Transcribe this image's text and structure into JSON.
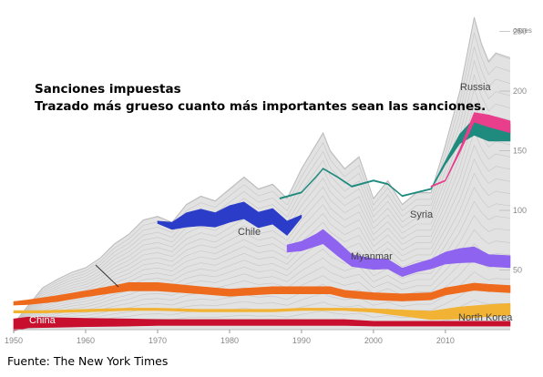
{
  "title": "Sanciones impuestas",
  "subtitle": "Trazado más grueso cuanto más importantes sean las sanciones.",
  "source": "Fuente: The New York Times",
  "chart_data": {
    "type": "area",
    "xlim": [
      1950,
      2019
    ],
    "ylim": [
      0,
      260
    ],
    "y_unit": "cases",
    "x_ticks": [
      1950,
      1960,
      1970,
      1980,
      1990,
      2000,
      2010
    ],
    "y_ticks": [
      50,
      100,
      150,
      200,
      250
    ],
    "grid": false,
    "total": {
      "x": [
        1950,
        1952,
        1954,
        1956,
        1958,
        1960,
        1962,
        1964,
        1966,
        1968,
        1970,
        1972,
        1974,
        1976,
        1978,
        1980,
        1982,
        1984,
        1986,
        1988,
        1990,
        1992,
        1993,
        1994,
        1996,
        1998,
        2000,
        2002,
        2004,
        2006,
        2008,
        2010,
        2012,
        2014,
        2015,
        2016,
        2017,
        2018,
        2019
      ],
      "values": [
        5,
        20,
        35,
        42,
        48,
        52,
        60,
        72,
        80,
        92,
        95,
        90,
        105,
        112,
        108,
        118,
        128,
        118,
        122,
        110,
        135,
        155,
        165,
        150,
        135,
        145,
        110,
        125,
        105,
        115,
        115,
        155,
        200,
        262,
        240,
        225,
        232,
        230,
        228
      ]
    },
    "highlighted_series": [
      {
        "name": "China",
        "color": "#c8102e",
        "x": [
          1950,
          1952,
          1956,
          1960,
          1966,
          1970,
          1976,
          1980,
          1986,
          1990,
          1996,
          2000,
          2006,
          2010,
          2016,
          2019
        ],
        "y": [
          4,
          6,
          6,
          6,
          6,
          6,
          6,
          6,
          6,
          6,
          6,
          5,
          5,
          5,
          5,
          5
        ],
        "thickness": [
          10,
          9,
          8,
          7,
          6,
          5,
          5,
          5,
          5,
          5,
          5,
          4,
          4,
          4,
          4,
          4
        ]
      },
      {
        "name": "North Korea",
        "color": "#f2b233",
        "x": [
          1950,
          1954,
          1960,
          1966,
          1970,
          1976,
          1980,
          1986,
          1990,
          1996,
          2000,
          2004,
          2008,
          2012,
          2016,
          2019
        ],
        "y": [
          15,
          15,
          16,
          17,
          17,
          16,
          16,
          16,
          17,
          17,
          16,
          14,
          12,
          14,
          16,
          17
        ],
        "thickness": [
          2,
          2,
          2,
          2,
          2,
          2,
          2,
          2,
          2,
          2,
          3,
          5,
          7,
          10,
          10,
          10
        ]
      },
      {
        "name": "",
        "color": "#ee6b1e",
        "x": [
          1950,
          1952,
          1956,
          1960,
          1964,
          1966,
          1970,
          1976,
          1980,
          1986,
          1990,
          1994,
          1996,
          2000,
          2004,
          2008,
          2010,
          2014,
          2016,
          2019
        ],
        "y": [
          22,
          23,
          26,
          30,
          34,
          36,
          36,
          33,
          31,
          33,
          33,
          33,
          30,
          28,
          27,
          28,
          32,
          36,
          35,
          34
        ],
        "thickness": [
          3,
          4,
          5,
          5,
          6,
          7,
          7,
          6,
          6,
          6,
          6,
          6,
          6,
          6,
          6,
          6,
          6,
          6,
          6,
          6
        ]
      },
      {
        "name": "",
        "color": "#8d63f0",
        "x": [
          1988,
          1990,
          1992,
          1993,
          1995,
          1997,
          2000,
          2002,
          2004,
          2006,
          2008,
          2010,
          2012,
          2014,
          2016,
          2019
        ],
        "y": [
          68,
          70,
          75,
          78,
          68,
          58,
          55,
          55,
          48,
          52,
          55,
          60,
          62,
          63,
          58,
          57
        ],
        "thickness": [
          6,
          8,
          10,
          12,
          12,
          10,
          9,
          8,
          7,
          7,
          8,
          10,
          12,
          13,
          10,
          10
        ]
      },
      {
        "name": "Chile",
        "color": "#2b3cc8",
        "x": [
          1970,
          1972,
          1974,
          1976,
          1978,
          1980,
          1982,
          1984,
          1986,
          1988,
          1990
        ],
        "y": [
          90,
          87,
          92,
          94,
          92,
          97,
          100,
          92,
          95,
          85,
          95
        ],
        "thickness": [
          2,
          6,
          12,
          14,
          12,
          14,
          14,
          13,
          13,
          12,
          2
        ]
      },
      {
        "name": "Syria",
        "color": "#1f8a7e",
        "x": [
          1987,
          1990,
          1992,
          1993,
          1995,
          1997,
          2000,
          2002,
          2004,
          2006,
          2008,
          2010,
          2012,
          2014,
          2016,
          2019
        ],
        "y": [
          110,
          115,
          128,
          135,
          128,
          120,
          125,
          122,
          112,
          115,
          118,
          140,
          160,
          170,
          165,
          165
        ],
        "thickness": [
          1,
          1,
          1,
          1,
          1,
          1,
          1,
          1,
          1,
          1,
          1,
          3,
          8,
          14,
          14,
          14
        ]
      },
      {
        "name": "Russia",
        "color": "#e83e8c",
        "x": [
          2008,
          2010,
          2012,
          2014,
          2016,
          2019
        ],
        "y": [
          120,
          125,
          150,
          178,
          175,
          170
        ],
        "thickness": [
          1,
          1,
          3,
          8,
          10,
          10
        ]
      }
    ],
    "annotations": [
      "China",
      "North Korea",
      "Chile",
      "Myanmar",
      "Syria",
      "Russia"
    ]
  }
}
